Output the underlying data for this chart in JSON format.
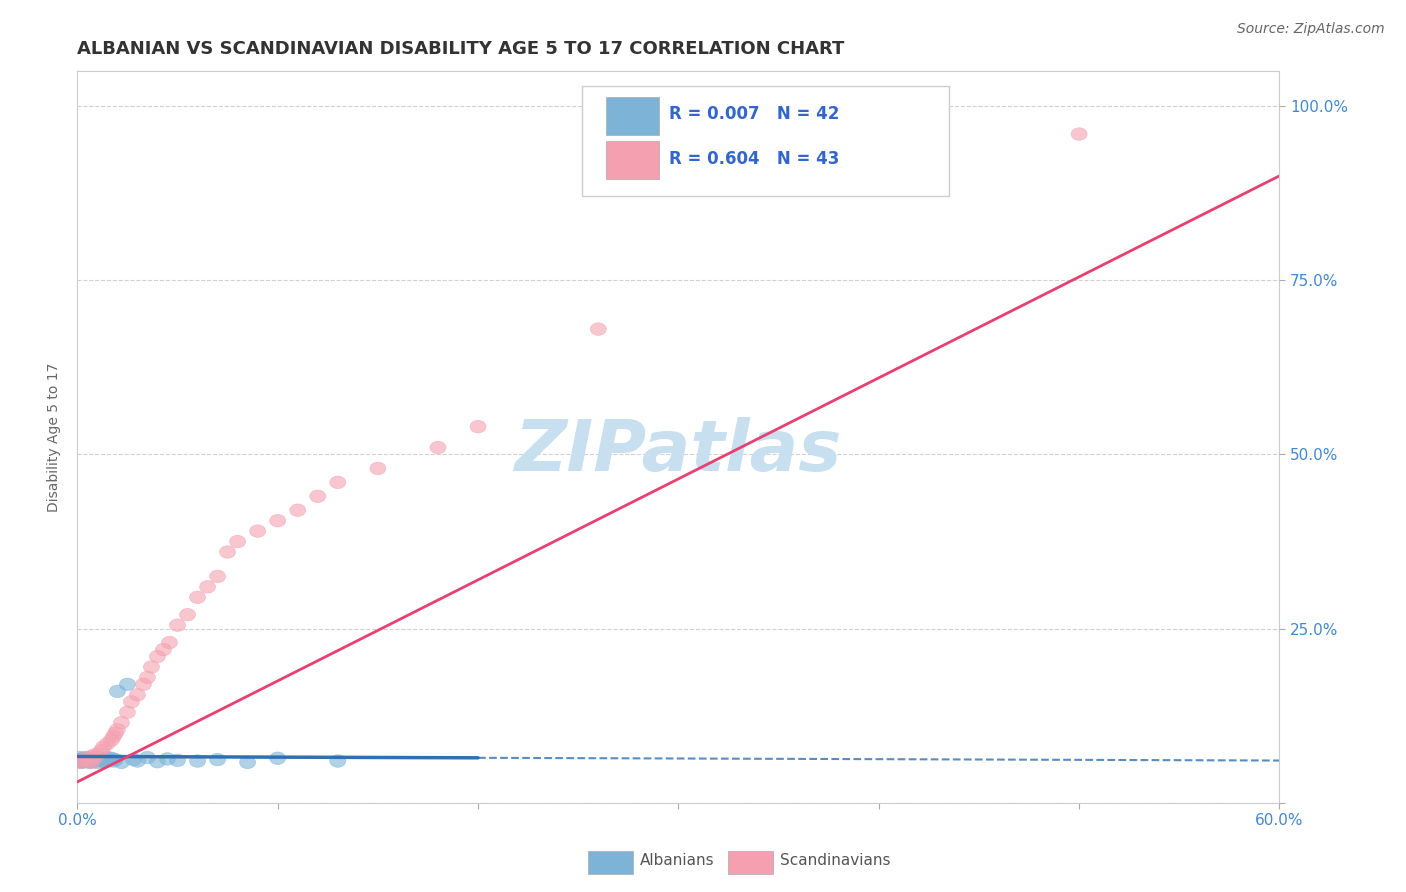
{
  "title": "ALBANIAN VS SCANDINAVIAN DISABILITY AGE 5 TO 17 CORRELATION CHART",
  "source_text": "Source: ZipAtlas.com",
  "ylabel": "Disability Age 5 to 17",
  "xlim": [
    0.0,
    0.6
  ],
  "ylim": [
    0.0,
    1.05
  ],
  "xticks": [
    0.0,
    0.1,
    0.2,
    0.3,
    0.4,
    0.5,
    0.6
  ],
  "xticklabels": [
    "0.0%",
    "",
    "",
    "",
    "",
    "",
    "60.0%"
  ],
  "yticks": [
    0.0,
    0.25,
    0.5,
    0.75,
    1.0
  ],
  "yticklabels": [
    "",
    "25.0%",
    "50.0%",
    "75.0%",
    "100.0%"
  ],
  "albanian_x": [
    0.001,
    0.001,
    0.002,
    0.002,
    0.003,
    0.003,
    0.004,
    0.004,
    0.005,
    0.005,
    0.006,
    0.006,
    0.007,
    0.007,
    0.008,
    0.008,
    0.009,
    0.01,
    0.01,
    0.011,
    0.012,
    0.013,
    0.014,
    0.015,
    0.016,
    0.017,
    0.018,
    0.019,
    0.02,
    0.022,
    0.025,
    0.028,
    0.03,
    0.035,
    0.04,
    0.045,
    0.05,
    0.06,
    0.07,
    0.085,
    0.1,
    0.13
  ],
  "albanian_y": [
    0.06,
    0.065,
    0.058,
    0.062,
    0.059,
    0.063,
    0.061,
    0.065,
    0.06,
    0.064,
    0.058,
    0.062,
    0.059,
    0.063,
    0.061,
    0.065,
    0.06,
    0.058,
    0.064,
    0.062,
    0.06,
    0.063,
    0.059,
    0.065,
    0.061,
    0.064,
    0.06,
    0.062,
    0.16,
    0.058,
    0.17,
    0.062,
    0.06,
    0.065,
    0.059,
    0.063,
    0.061,
    0.06,
    0.062,
    0.058,
    0.064,
    0.06
  ],
  "scandinavian_x": [
    0.001,
    0.002,
    0.003,
    0.005,
    0.006,
    0.007,
    0.008,
    0.009,
    0.01,
    0.012,
    0.013,
    0.015,
    0.017,
    0.018,
    0.019,
    0.02,
    0.022,
    0.025,
    0.027,
    0.03,
    0.033,
    0.035,
    0.037,
    0.04,
    0.043,
    0.046,
    0.05,
    0.055,
    0.06,
    0.065,
    0.07,
    0.075,
    0.08,
    0.09,
    0.1,
    0.11,
    0.12,
    0.13,
    0.15,
    0.18,
    0.2,
    0.26,
    0.5
  ],
  "scandinavian_y": [
    0.06,
    0.058,
    0.062,
    0.065,
    0.06,
    0.058,
    0.068,
    0.065,
    0.07,
    0.075,
    0.08,
    0.085,
    0.09,
    0.095,
    0.1,
    0.105,
    0.115,
    0.13,
    0.145,
    0.155,
    0.17,
    0.18,
    0.195,
    0.21,
    0.22,
    0.23,
    0.255,
    0.27,
    0.295,
    0.31,
    0.325,
    0.36,
    0.375,
    0.39,
    0.405,
    0.42,
    0.44,
    0.46,
    0.48,
    0.51,
    0.54,
    0.68,
    0.96
  ],
  "albanian_color": "#7eb3d8",
  "scandinavian_color": "#f4a0b0",
  "albanian_line_color": "#3070b0",
  "scandinavian_line_color": "#e84070",
  "background_color": "#ffffff",
  "grid_color": "#cccccc",
  "watermark_text": "ZIPatlas",
  "watermark_color": "#c8dff0",
  "title_fontsize": 13,
  "axis_label_fontsize": 10,
  "tick_fontsize": 11,
  "right_tick_color": "#4488cc"
}
